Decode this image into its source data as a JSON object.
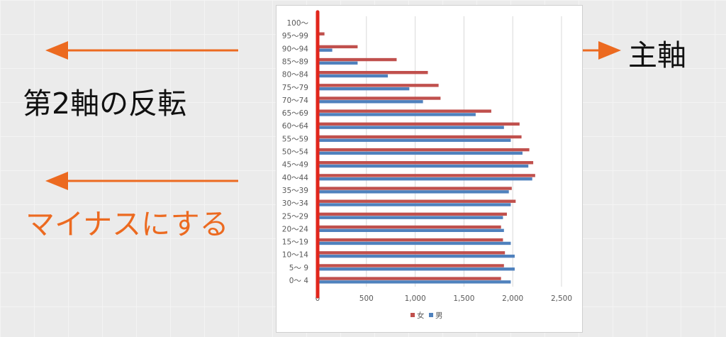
{
  "overlay": {
    "secondary_axis_reverse": "第2軸の反転",
    "primary_axis": "主軸",
    "make_negative": "マイナスにする"
  },
  "colors": {
    "accent_orange": "#ec6a20",
    "axis_red": "#e1261c",
    "female_bar": "#c0504d",
    "male_bar": "#4f81bd"
  },
  "chart_data": {
    "type": "bar",
    "orientation": "horizontal",
    "categories": [
      "0～ 4",
      "5～ 9",
      "10～14",
      "15～19",
      "20～24",
      "25～29",
      "30～34",
      "35～39",
      "40～44",
      "45～49",
      "50～54",
      "55～59",
      "60～64",
      "65～69",
      "70～74",
      "75～79",
      "80～84",
      "85～89",
      "90～94",
      "95～99",
      "100～"
    ],
    "series": [
      {
        "name": "女",
        "color": "#c0504d",
        "values": [
          1880,
          1910,
          1920,
          1900,
          1880,
          1940,
          2030,
          1990,
          2230,
          2210,
          2170,
          2090,
          2070,
          1780,
          1260,
          1240,
          1130,
          810,
          410,
          70,
          0
        ]
      },
      {
        "name": "男",
        "color": "#4f81bd",
        "values": [
          1980,
          2020,
          2020,
          1980,
          1910,
          1900,
          1980,
          1960,
          2200,
          2160,
          2100,
          1980,
          1910,
          1620,
          1080,
          940,
          720,
          410,
          150,
          0,
          0
        ]
      }
    ],
    "xlim": [
      0,
      2500
    ],
    "xticks": [
      0,
      500,
      1000,
      1500,
      2000,
      2500
    ],
    "xtick_labels": [
      "0",
      "500",
      "1,000",
      "1,500",
      "2,000",
      "2,500"
    ],
    "grid": true,
    "legend_position": "bottom",
    "legend": [
      "女",
      "男"
    ]
  }
}
